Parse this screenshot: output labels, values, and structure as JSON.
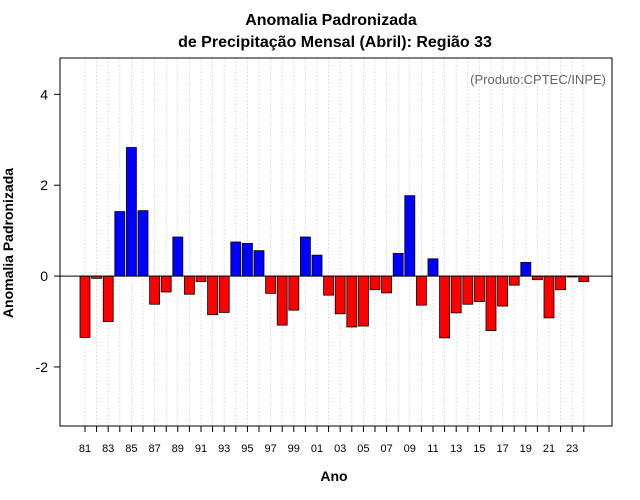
{
  "chart_data": {
    "type": "bar",
    "title": "Anomalia Padronizada",
    "subtitle": "de Precipitação Mensal (Abril): Região 33",
    "xlabel": "Ano",
    "ylabel": "Anomalia Padronizada",
    "credit": "(Produto:CPTEC/INPE)",
    "ylim": [
      -3.3,
      4.8
    ],
    "yticks": [
      -2,
      0,
      2,
      4
    ],
    "grid": true,
    "positive_color": "#0000ff",
    "negative_color": "#ff0000",
    "categories": [
      "81",
      "82",
      "83",
      "84",
      "85",
      "86",
      "87",
      "88",
      "89",
      "90",
      "91",
      "92",
      "93",
      "94",
      "95",
      "96",
      "97",
      "98",
      "99",
      "00",
      "01",
      "02",
      "03",
      "04",
      "05",
      "06",
      "07",
      "08",
      "09",
      "10",
      "11",
      "12",
      "13",
      "14",
      "15",
      "16",
      "17",
      "18",
      "19",
      "20",
      "21",
      "22",
      "23",
      "24"
    ],
    "xtick_labels": [
      "81",
      "83",
      "85",
      "87",
      "89",
      "91",
      "93",
      "95",
      "97",
      "99",
      "01",
      "03",
      "05",
      "07",
      "09",
      "11",
      "13",
      "15",
      "17",
      "19",
      "21",
      "23"
    ],
    "values": [
      -1.35,
      -0.05,
      -1.0,
      1.42,
      2.83,
      1.44,
      -0.62,
      -0.35,
      0.86,
      -0.4,
      -0.12,
      -0.85,
      -0.8,
      0.75,
      0.72,
      0.56,
      -0.38,
      -1.08,
      -0.75,
      0.86,
      0.46,
      -0.42,
      -0.83,
      -1.12,
      -1.1,
      -0.3,
      -0.37,
      0.5,
      1.77,
      -0.64,
      0.38,
      -1.36,
      -0.81,
      -0.62,
      -0.56,
      -1.2,
      -0.66,
      -0.2,
      0.3,
      -0.08,
      -0.92,
      -0.3,
      -0.02,
      -0.12
    ]
  }
}
